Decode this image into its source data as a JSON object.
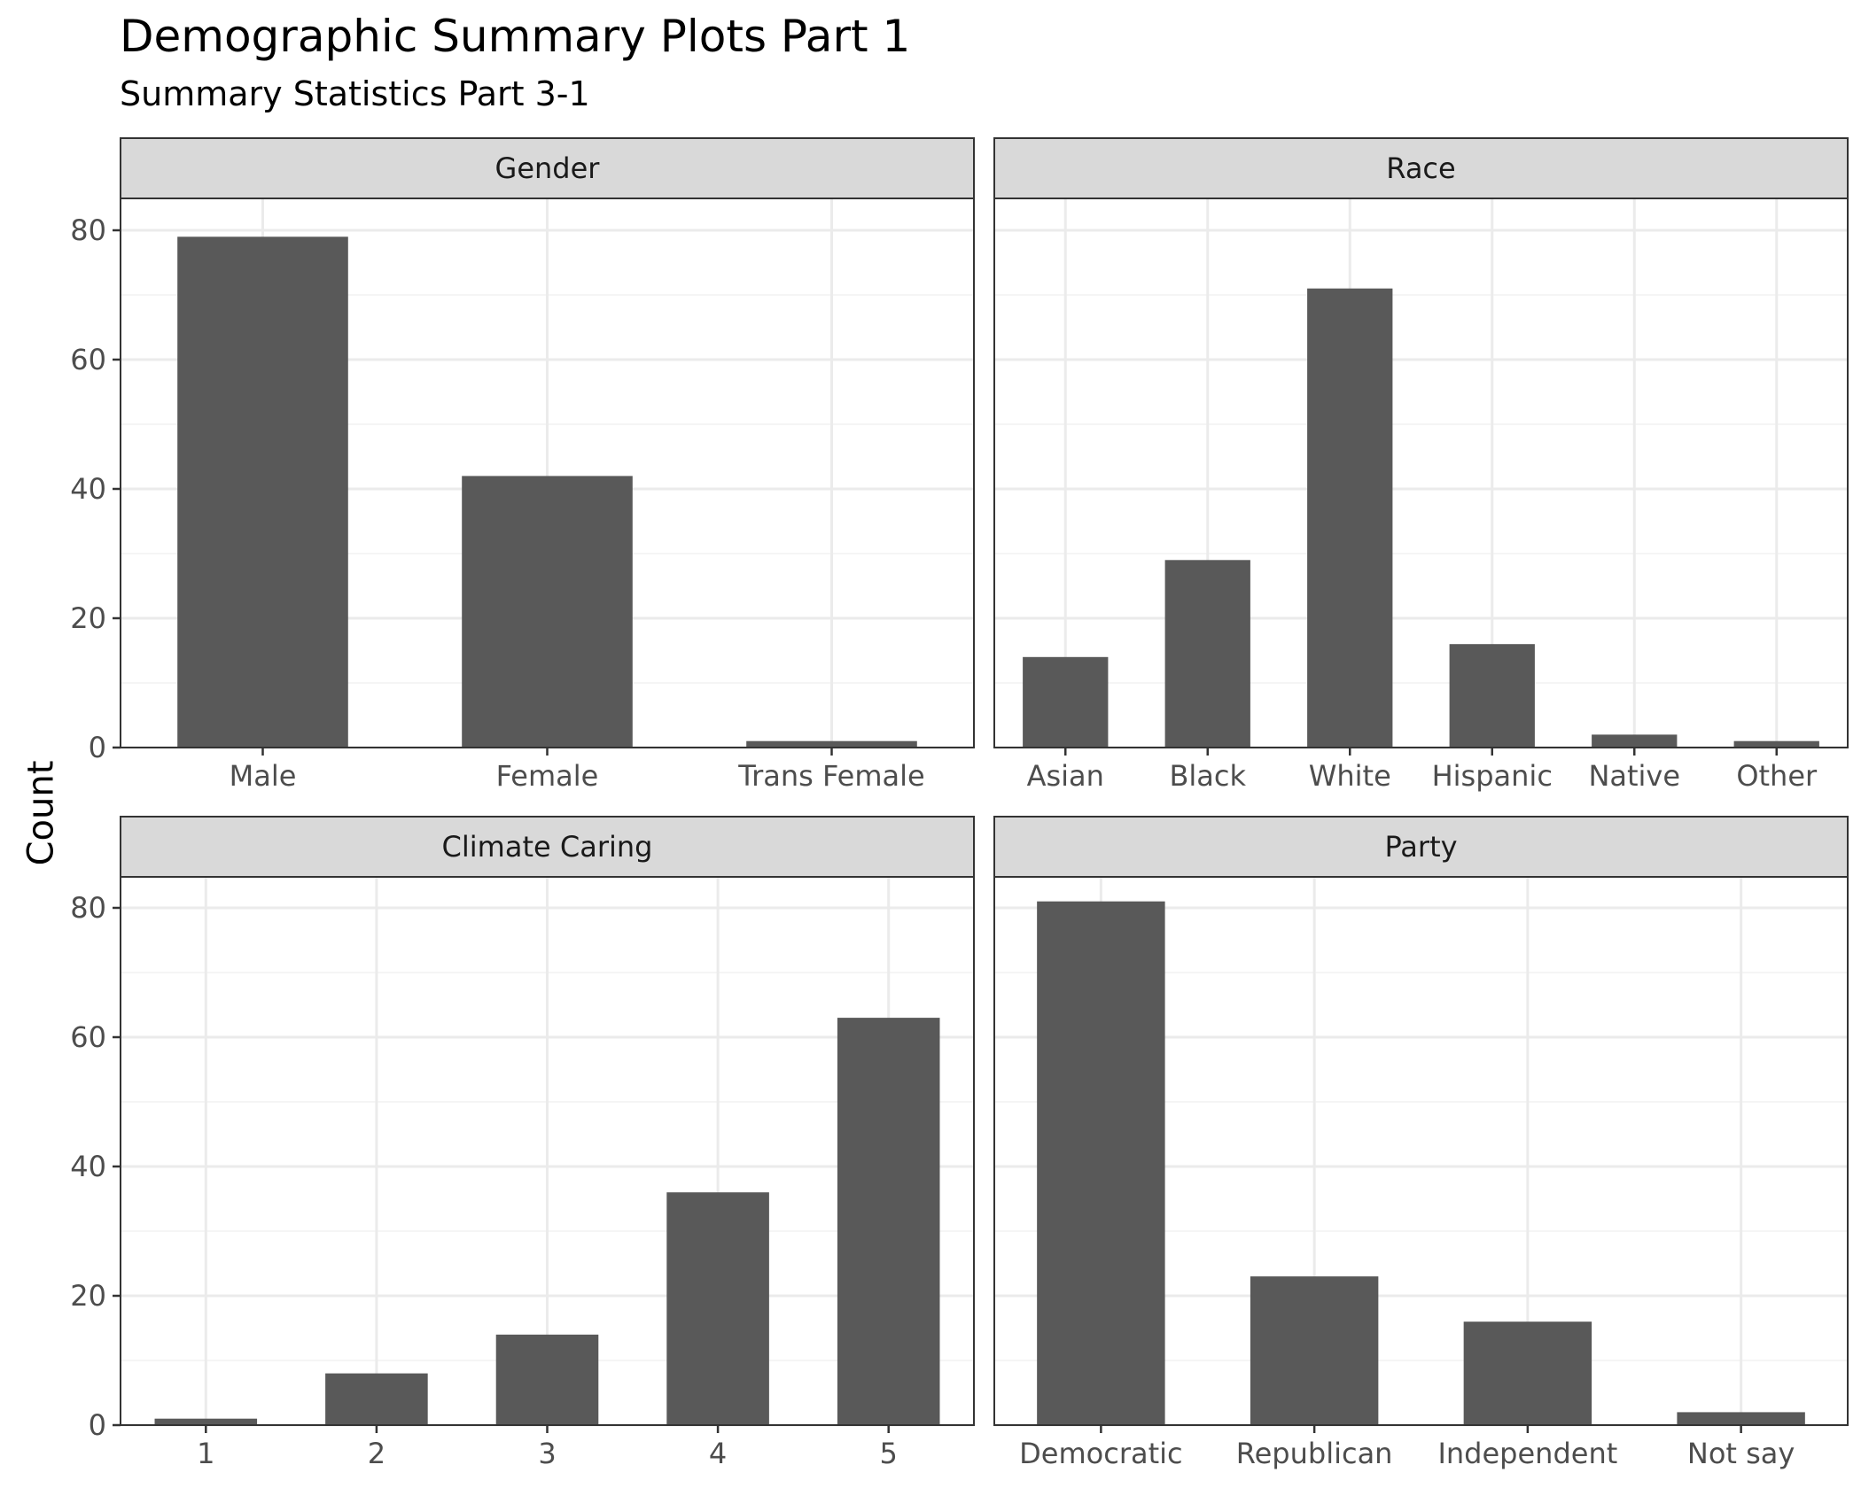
{
  "header": {
    "title": "Demographic Summary Plots Part 1",
    "subtitle": "Summary Statistics Part 3-1"
  },
  "colors": {
    "bar": "#595959",
    "strip_fill": "#d9d9d9",
    "grid_major": "#ebebeb",
    "grid_minor": "#f2f2f2",
    "frame": "#333333"
  },
  "chart_data": {
    "type": "bar",
    "title": "Demographic Summary Plots Part 1",
    "subtitle": "Summary Statistics Part 3-1",
    "ylabel": "Count",
    "xlabel": "",
    "ylim": [
      0,
      85
    ],
    "yticks": [
      0,
      20,
      40,
      60,
      80
    ],
    "grid": true,
    "facets": [
      {
        "name": "Gender",
        "categories": [
          "Male",
          "Female",
          "Trans Female"
        ],
        "values": [
          79,
          42,
          1
        ]
      },
      {
        "name": "Race",
        "categories": [
          "Asian",
          "Black",
          "White",
          "Hispanic",
          "Native",
          "Other"
        ],
        "values": [
          14,
          29,
          71,
          16,
          2,
          1
        ]
      },
      {
        "name": "Climate Caring",
        "categories": [
          "1",
          "2",
          "3",
          "4",
          "5"
        ],
        "values": [
          1,
          8,
          14,
          36,
          63
        ]
      },
      {
        "name": "Party",
        "categories": [
          "Democratic",
          "Republican",
          "Independent",
          "Not say"
        ],
        "values": [
          81,
          23,
          16,
          2
        ]
      }
    ]
  }
}
